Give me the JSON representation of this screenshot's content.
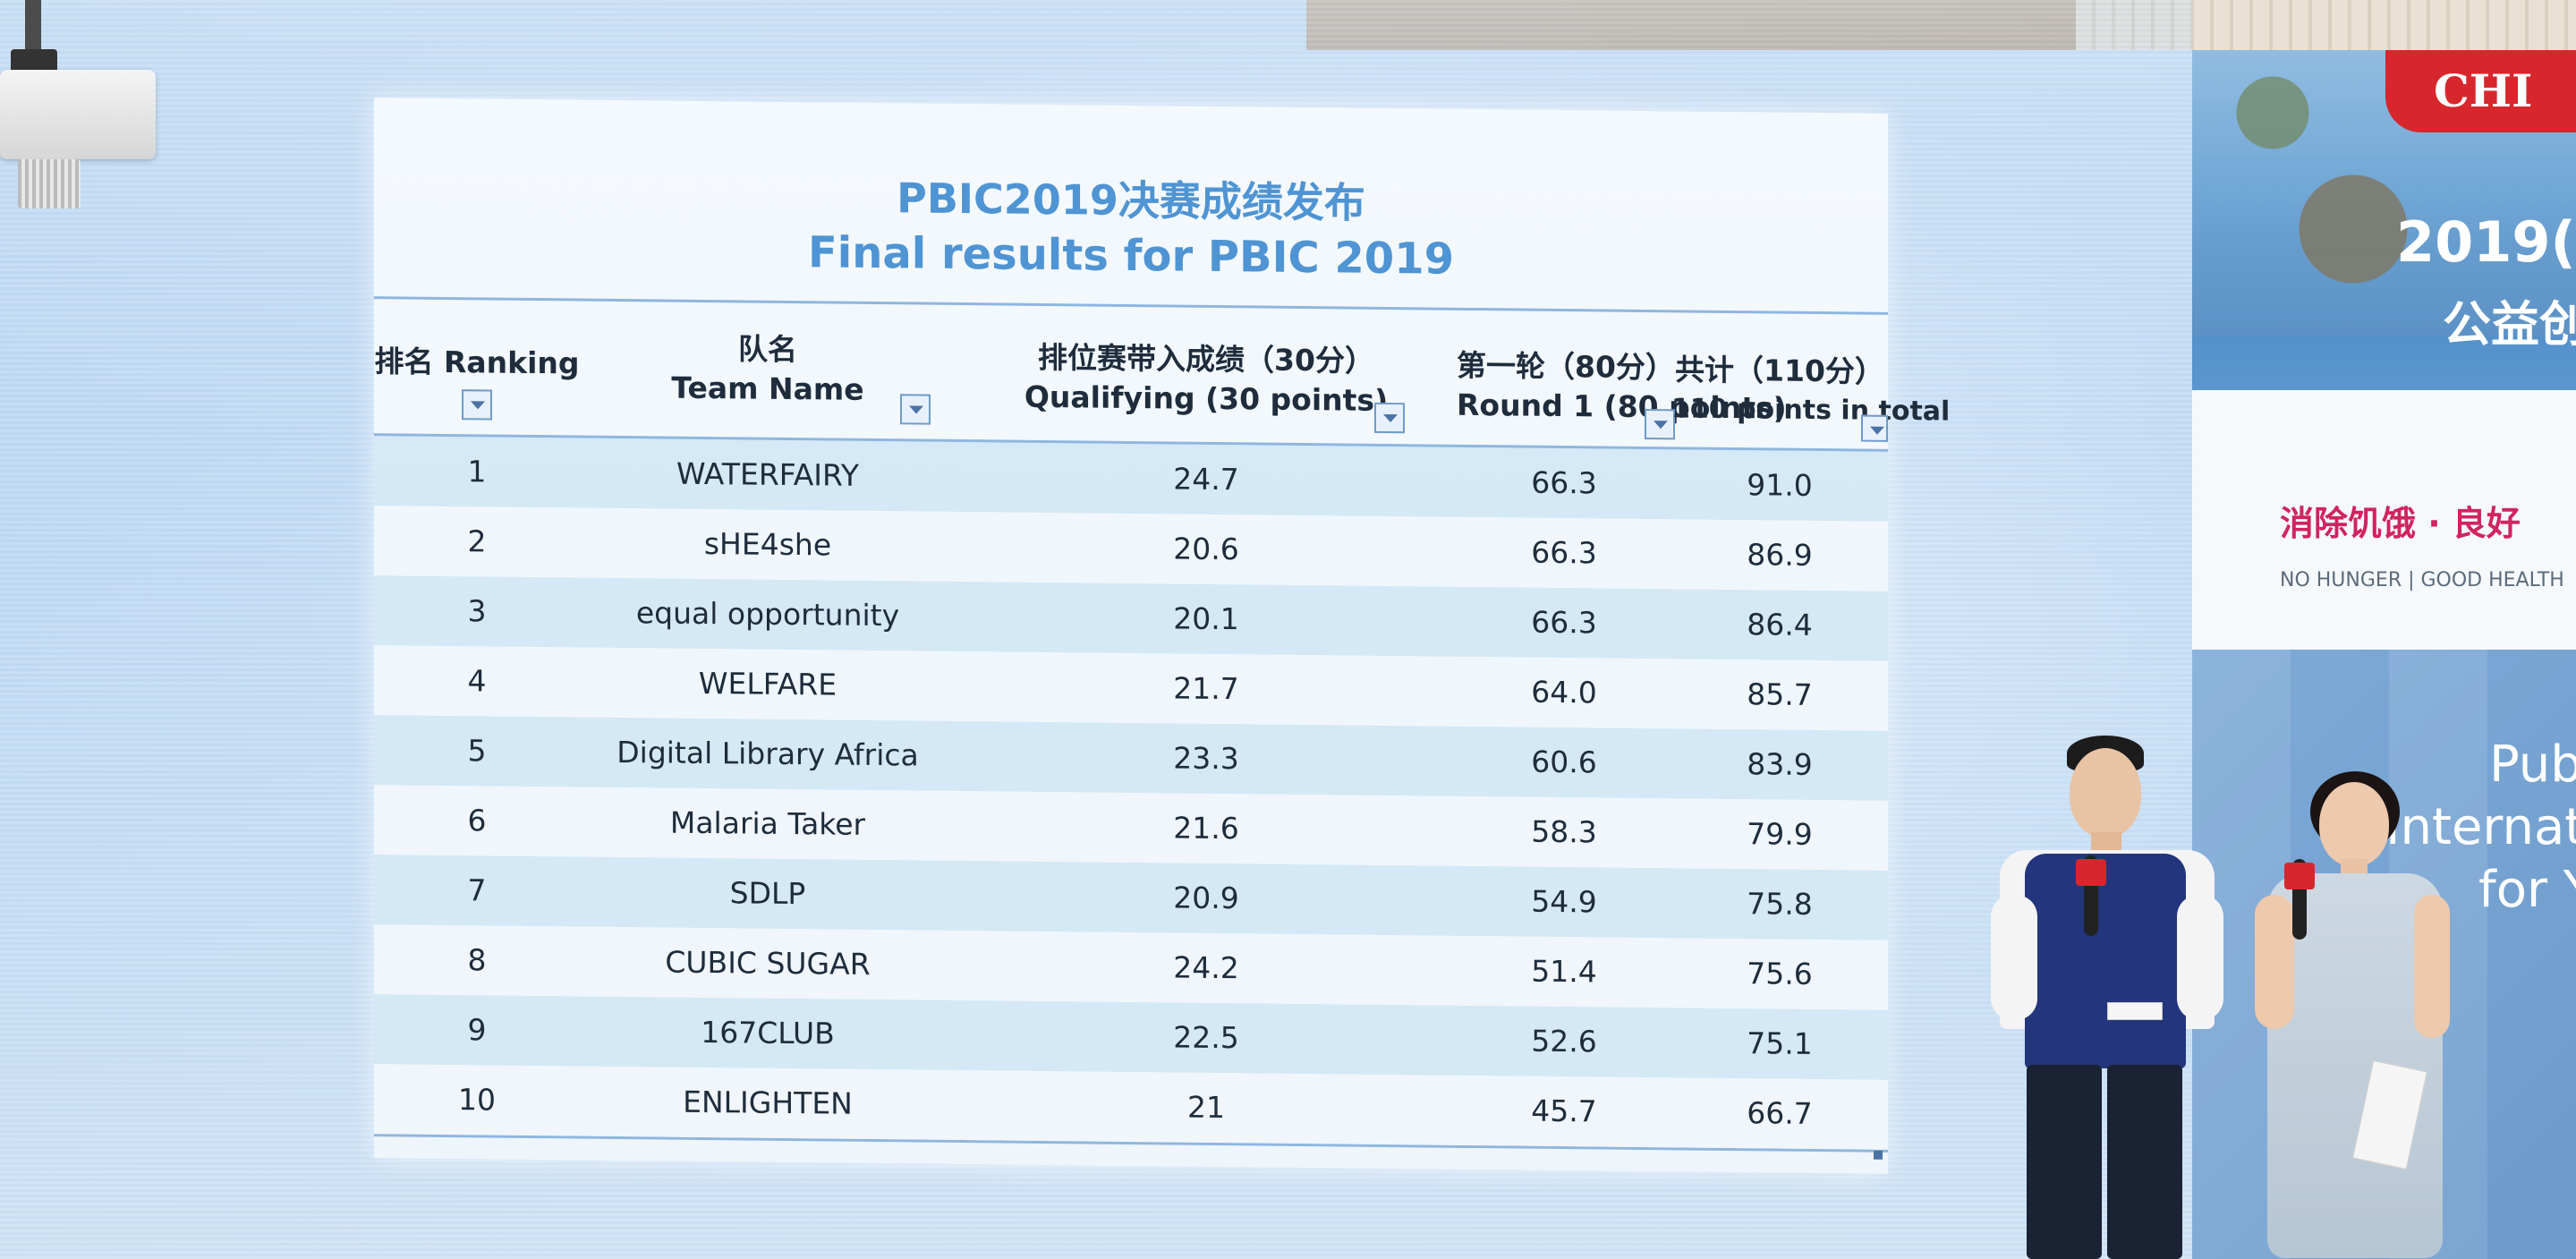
{
  "slide": {
    "title_cn": "PBIC2019决赛成绩发布",
    "title_en": "Final results for PBIC 2019",
    "headers": [
      {
        "line1": "排名 Ranking",
        "line2": ""
      },
      {
        "line1": "队名",
        "line2": "Team Name"
      },
      {
        "line1": "排位赛带入成绩（30分）",
        "line2": "Qualifying (30 points)"
      },
      {
        "line1": "第一轮（80分）",
        "line2": "Round 1 (80 points)"
      },
      {
        "line1": "共计（110分）",
        "line2": "110 points in total"
      }
    ],
    "rows": [
      {
        "rank": "1",
        "team": "WATERFAIRY",
        "qualifying": "24.7",
        "round1": "66.3",
        "total": "91.0"
      },
      {
        "rank": "2",
        "team": "sHE4she",
        "qualifying": "20.6",
        "round1": "66.3",
        "total": "86.9"
      },
      {
        "rank": "3",
        "team": "equal opportunity",
        "qualifying": "20.1",
        "round1": "66.3",
        "total": "86.4"
      },
      {
        "rank": "4",
        "team": "WELFARE",
        "qualifying": "21.7",
        "round1": "64.0",
        "total": "85.7"
      },
      {
        "rank": "5",
        "team": "Digital Library Africa",
        "qualifying": "23.3",
        "round1": "60.6",
        "total": "83.9"
      },
      {
        "rank": "6",
        "team": "Malaria Taker",
        "qualifying": "21.6",
        "round1": "58.3",
        "total": "79.9"
      },
      {
        "rank": "7",
        "team": "SDLP",
        "qualifying": "20.9",
        "round1": "54.9",
        "total": "75.8"
      },
      {
        "rank": "8",
        "team": "CUBIC SUGAR",
        "qualifying": "24.2",
        "round1": "51.4",
        "total": "75.6"
      },
      {
        "rank": "9",
        "team": "167CLUB",
        "qualifying": "22.5",
        "round1": "52.6",
        "total": "75.1"
      },
      {
        "rank": "10",
        "team": "ENLIGHTEN",
        "qualifying": "21",
        "round1": "45.7",
        "total": "66.7"
      }
    ]
  },
  "banner": {
    "brand": "CHI",
    "year": "2019(",
    "cn_line": "公益创",
    "slogan_cn": "消除饥饿 · 良好",
    "slogan_en": "NO HUNGER | GOOD HEALTH",
    "line_1": "Pub",
    "line_2": "Internati",
    "line_3": "for Y"
  },
  "colors": {
    "title_blue": "#4f94d3",
    "brand_red": "#d8262d",
    "slogan_pink": "#d0245f",
    "row_alt": "#bedcf0"
  },
  "icons": [
    "filter-dropdown-icon",
    "sort-filter-icon"
  ]
}
